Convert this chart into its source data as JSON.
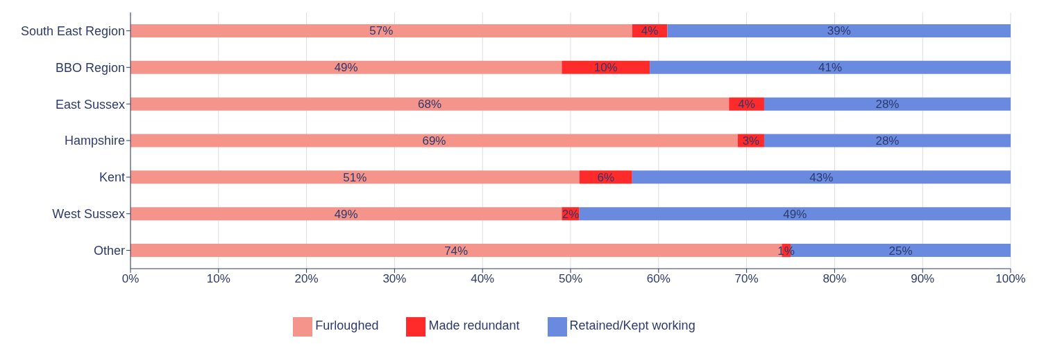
{
  "chart_data": {
    "type": "bar",
    "orientation": "horizontal",
    "stacked": true,
    "categories": [
      "South East Region",
      "BBO Region",
      "East Sussex",
      "Hampshire",
      "Kent",
      "West Sussex",
      "Other"
    ],
    "series": [
      {
        "name": "Furloughed",
        "color": "#f4948a",
        "values": [
          57,
          49,
          68,
          69,
          51,
          49,
          74
        ],
        "value_labels": [
          "57%",
          "49%",
          "68%",
          "69%",
          "51%",
          "49%",
          "74%"
        ]
      },
      {
        "name": "Made redundant",
        "color": "#ff2a2a",
        "values": [
          4,
          10,
          4,
          3,
          6,
          2,
          1
        ],
        "value_labels": [
          "4%",
          "10%",
          "4%",
          "3%",
          "6%",
          "2%",
          "1%"
        ]
      },
      {
        "name": "Retained/Kept working",
        "color": "#6a8ae0",
        "values": [
          39,
          41,
          28,
          28,
          43,
          49,
          25
        ],
        "value_labels": [
          "39%",
          "41%",
          "28%",
          "28%",
          "43%",
          "49%",
          "25%"
        ]
      }
    ],
    "xlim": [
      0,
      100
    ],
    "xticks": [
      {
        "value": 0,
        "label": "0%"
      },
      {
        "value": 10,
        "label": "10%"
      },
      {
        "value": 20,
        "label": "20%"
      },
      {
        "value": 30,
        "label": "30%"
      },
      {
        "value": 40,
        "label": "40%"
      },
      {
        "value": 50,
        "label": "50%"
      },
      {
        "value": 60,
        "label": "60%"
      },
      {
        "value": 70,
        "label": "70%"
      },
      {
        "value": 80,
        "label": "80%"
      },
      {
        "value": 90,
        "label": "90%"
      },
      {
        "value": 100,
        "label": "100%"
      }
    ],
    "grid": "x",
    "legend": "bottom"
  }
}
